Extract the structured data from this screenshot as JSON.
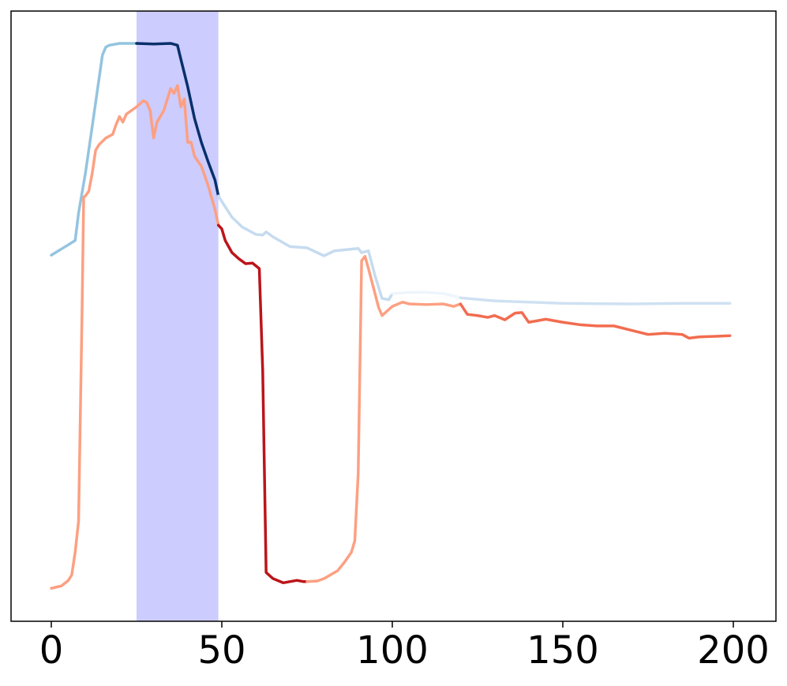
{
  "chart_data": {
    "type": "line",
    "xlim": [
      -11.8,
      212.5
    ],
    "xticks": [
      0,
      50,
      100,
      150,
      200
    ],
    "ylim": [
      0,
      1
    ],
    "spans": [
      {
        "x0": 25,
        "x1": 49,
        "color": "#ccccff"
      }
    ],
    "series": [
      {
        "color": "#94c4df",
        "x": [
          0,
          5,
          7,
          8,
          10,
          12,
          14,
          15,
          16,
          17,
          20,
          25
        ],
        "values": [
          0.6,
          0.617,
          0.624,
          0.669,
          0.734,
          0.811,
          0.889,
          0.928,
          0.941,
          0.944,
          0.947,
          0.947
        ]
      },
      {
        "color": "#08306b",
        "x": [
          25,
          30,
          35,
          37,
          38,
          40,
          42,
          44,
          46,
          48,
          49
        ],
        "values": [
          0.947,
          0.946,
          0.947,
          0.944,
          0.921,
          0.876,
          0.824,
          0.785,
          0.753,
          0.723,
          0.697
        ]
      },
      {
        "color": "#c6dbef",
        "x": [
          49,
          50,
          53,
          56,
          60,
          62,
          63,
          65,
          70,
          75,
          78,
          80,
          83,
          90,
          91,
          93,
          95,
          97,
          99,
          100
        ],
        "values": [
          0.697,
          0.688,
          0.662,
          0.646,
          0.634,
          0.633,
          0.638,
          0.63,
          0.614,
          0.612,
          0.604,
          0.599,
          0.607,
          0.611,
          0.604,
          0.607,
          0.565,
          0.529,
          0.527,
          0.537
        ]
      },
      {
        "color": "#eef5fc",
        "x": [
          100,
          105,
          110,
          115,
          118,
          120
        ],
        "values": [
          0.537,
          0.539,
          0.539,
          0.537,
          0.533,
          0.53
        ]
      },
      {
        "color": "#cfe1f2",
        "x": [
          120,
          130,
          150,
          170,
          185,
          199
        ],
        "values": [
          0.53,
          0.525,
          0.521,
          0.52,
          0.521,
          0.521
        ]
      },
      {
        "color": "#fca082",
        "x": [
          0,
          3,
          5,
          6,
          7,
          8,
          9,
          9.5,
          10,
          11,
          12,
          13,
          14,
          16,
          18,
          19,
          20,
          21,
          22,
          25,
          27,
          28,
          29,
          30,
          31,
          33,
          35,
          36,
          37,
          38,
          39,
          40,
          41,
          42,
          44,
          46,
          48,
          49
        ],
        "values": [
          0.054,
          0.058,
          0.067,
          0.076,
          0.113,
          0.164,
          0.501,
          0.695,
          0.697,
          0.705,
          0.734,
          0.772,
          0.781,
          0.792,
          0.798,
          0.814,
          0.827,
          0.818,
          0.831,
          0.843,
          0.853,
          0.85,
          0.837,
          0.792,
          0.818,
          0.837,
          0.873,
          0.865,
          0.878,
          0.843,
          0.856,
          0.785,
          0.785,
          0.762,
          0.746,
          0.714,
          0.675,
          0.649
        ]
      },
      {
        "color": "#bb151a",
        "x": [
          49,
          50,
          51,
          53,
          55,
          57,
          59,
          61,
          62,
          63,
          65,
          68,
          72,
          74,
          75
        ],
        "values": [
          0.649,
          0.643,
          0.624,
          0.604,
          0.594,
          0.586,
          0.587,
          0.578,
          0.41,
          0.08,
          0.07,
          0.063,
          0.067,
          0.065,
          0.065
        ]
      },
      {
        "color": "#fca082",
        "x": [
          75,
          78,
          80,
          84,
          86,
          88,
          89,
          90,
          91,
          92,
          93,
          96,
          97,
          100,
          103,
          105,
          110,
          115,
          118,
          120
        ],
        "values": [
          0.065,
          0.066,
          0.07,
          0.083,
          0.097,
          0.113,
          0.132,
          0.242,
          0.591,
          0.598,
          0.578,
          0.514,
          0.501,
          0.516,
          0.523,
          0.52,
          0.519,
          0.52,
          0.516,
          0.52
        ]
      },
      {
        "color": "#f26c4f",
        "x": [
          120,
          122,
          125,
          128,
          130,
          133,
          136,
          138,
          140,
          145,
          150,
          155,
          160,
          165,
          170,
          175,
          180,
          185,
          187,
          190,
          195,
          199
        ],
        "values": [
          0.52,
          0.503,
          0.501,
          0.498,
          0.501,
          0.494,
          0.505,
          0.506,
          0.49,
          0.495,
          0.49,
          0.486,
          0.484,
          0.484,
          0.477,
          0.47,
          0.472,
          0.47,
          0.464,
          0.466,
          0.467,
          0.468
        ]
      }
    ]
  }
}
